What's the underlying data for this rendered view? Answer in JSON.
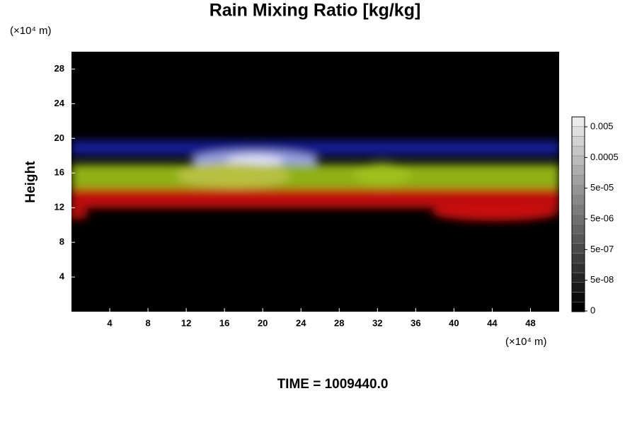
{
  "chart_data": {
    "type": "heatmap",
    "title": "Rain Mixing Ratio [kg/kg]",
    "y_unit": "(×10⁴ m)",
    "x_unit": "(×10⁴ m)",
    "ylabel": "Height",
    "xlim": [
      0,
      51
    ],
    "xticks": [
      4,
      8,
      12,
      16,
      20,
      24,
      28,
      32,
      36,
      40,
      44,
      48
    ],
    "ylim": [
      0,
      30
    ],
    "yticks": [
      4,
      8,
      12,
      16,
      20,
      24,
      28
    ],
    "colorbar_ticks": [
      0,
      {
        "value": 5e-08,
        "label": "5e-08"
      },
      {
        "value": 5e-07,
        "label": "5e-07"
      },
      {
        "value": 5e-06,
        "label": "5e-06"
      },
      {
        "value": 5e-05,
        "label": "5e-05"
      },
      0.0005,
      0.005
    ],
    "footer": "TIME = 1009440.0"
  }
}
